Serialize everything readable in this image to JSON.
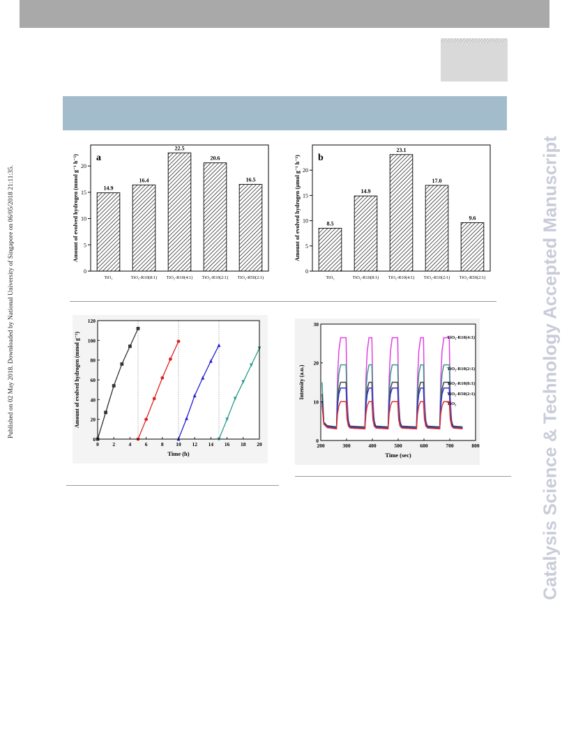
{
  "side_text_left": "Published on 02 May 2018. Downloaded by National University of Singapore on 06/05/2018 21:11:35.",
  "side_text_right": "Catalysis Science & Technology Accepted Manuscript",
  "colors": {
    "top_bar": "#a9a9a9",
    "header_band": "#a3bccb",
    "watermark": "#c9ccd9"
  },
  "chart_data": [
    {
      "type": "bar",
      "panel_label": "a",
      "ylabel": "Amount of evolved hydrogen (mmol g⁻¹ h⁻¹)",
      "categories": [
        "TiO₂",
        "TiO₂-R10(8:1)",
        "TiO₂-R10(4:1)",
        "TiO₂-R10(2:1)",
        "TiO₂-R50(2:1)"
      ],
      "values": [
        14.9,
        16.4,
        22.5,
        20.6,
        16.5
      ],
      "data_labels": [
        "14.9",
        "16.4",
        "22.5",
        "20.6",
        "16.5"
      ],
      "ylim": [
        0,
        24
      ],
      "yticks": [
        0,
        5,
        10,
        15,
        20
      ]
    },
    {
      "type": "bar",
      "panel_label": "b",
      "ylabel": "Amount of evolved hydrogen (μmol g⁻¹ h⁻¹)",
      "categories": [
        "TiO₂",
        "TiO₂-R10(8:1)",
        "TiO₂-R10(4:1)",
        "TiO₂-R10(2:1)",
        "TiO₂-R50(2:1)"
      ],
      "values": [
        8.5,
        14.9,
        23.1,
        17.0,
        9.6
      ],
      "data_labels": [
        "8.5",
        "14.9",
        "23.1",
        "17.0",
        "9.6"
      ],
      "ylim": [
        0,
        25
      ],
      "yticks": [
        0,
        5,
        10,
        15,
        20
      ]
    },
    {
      "type": "line",
      "xlabel": "Time (h)",
      "ylabel": "Amount of evolved hydrogen (mmol g⁻¹)",
      "xlim": [
        0,
        20
      ],
      "ylim": [
        0,
        120
      ],
      "xticks": [
        0,
        2,
        4,
        6,
        8,
        10,
        12,
        14,
        16,
        18,
        20
      ],
      "yticks": [
        0,
        20,
        40,
        60,
        80,
        100,
        120
      ],
      "cycle_dividers": [
        5,
        10,
        15
      ],
      "series": [
        {
          "color": "#333333",
          "marker": "square",
          "x": [
            0,
            1,
            2,
            3,
            4,
            5
          ],
          "y": [
            0,
            27,
            54,
            76,
            94,
            112
          ]
        },
        {
          "color": "#e02020",
          "marker": "circle",
          "x": [
            5,
            6,
            7,
            8,
            9,
            10
          ],
          "y": [
            0,
            20,
            41,
            62,
            81,
            99
          ]
        },
        {
          "color": "#2020d0",
          "marker": "triangle-up",
          "x": [
            10,
            11,
            12,
            13,
            14,
            15
          ],
          "y": [
            0,
            21,
            44,
            62,
            79,
            95
          ]
        },
        {
          "color": "#2a9a8e",
          "marker": "triangle-down",
          "x": [
            15,
            16,
            17,
            18,
            19,
            20
          ],
          "y": [
            0,
            20,
            41,
            58,
            75,
            92
          ]
        }
      ]
    },
    {
      "type": "line",
      "xlabel": "Time (sec)",
      "ylabel": "Intensity (a.u.)",
      "xlim": [
        200,
        800
      ],
      "ylim": [
        0,
        30
      ],
      "xticks": [
        200,
        300,
        400,
        500,
        600,
        700,
        800
      ],
      "yticks": [
        0,
        10,
        20,
        30
      ],
      "pulse_on": [
        262,
        372,
        462,
        572,
        662
      ],
      "pulse_off": [
        300,
        400,
        500,
        600,
        700
      ],
      "series": [
        {
          "name": "TiO₂-R10(4:1)",
          "color": "#e040e0",
          "base": 3.0,
          "peak": 26.5,
          "start": 10.0
        },
        {
          "name": "TiO₂-R10(2:1)",
          "color": "#3a9a8a",
          "base": 3.3,
          "peak": 19.5,
          "start": 15.0
        },
        {
          "name": "TiO₂-R10(8:1)",
          "color": "#444444",
          "base": 3.5,
          "peak": 15.0,
          "start": 12.0
        },
        {
          "name": "TiO₂-R50(2:1)",
          "color": "#3030d0",
          "base": 3.2,
          "peak": 13.5,
          "start": 10.0
        },
        {
          "name": "TiO₂",
          "color": "#e03030",
          "base": 3.0,
          "peak": 10.0,
          "start": 9.0
        }
      ]
    }
  ]
}
